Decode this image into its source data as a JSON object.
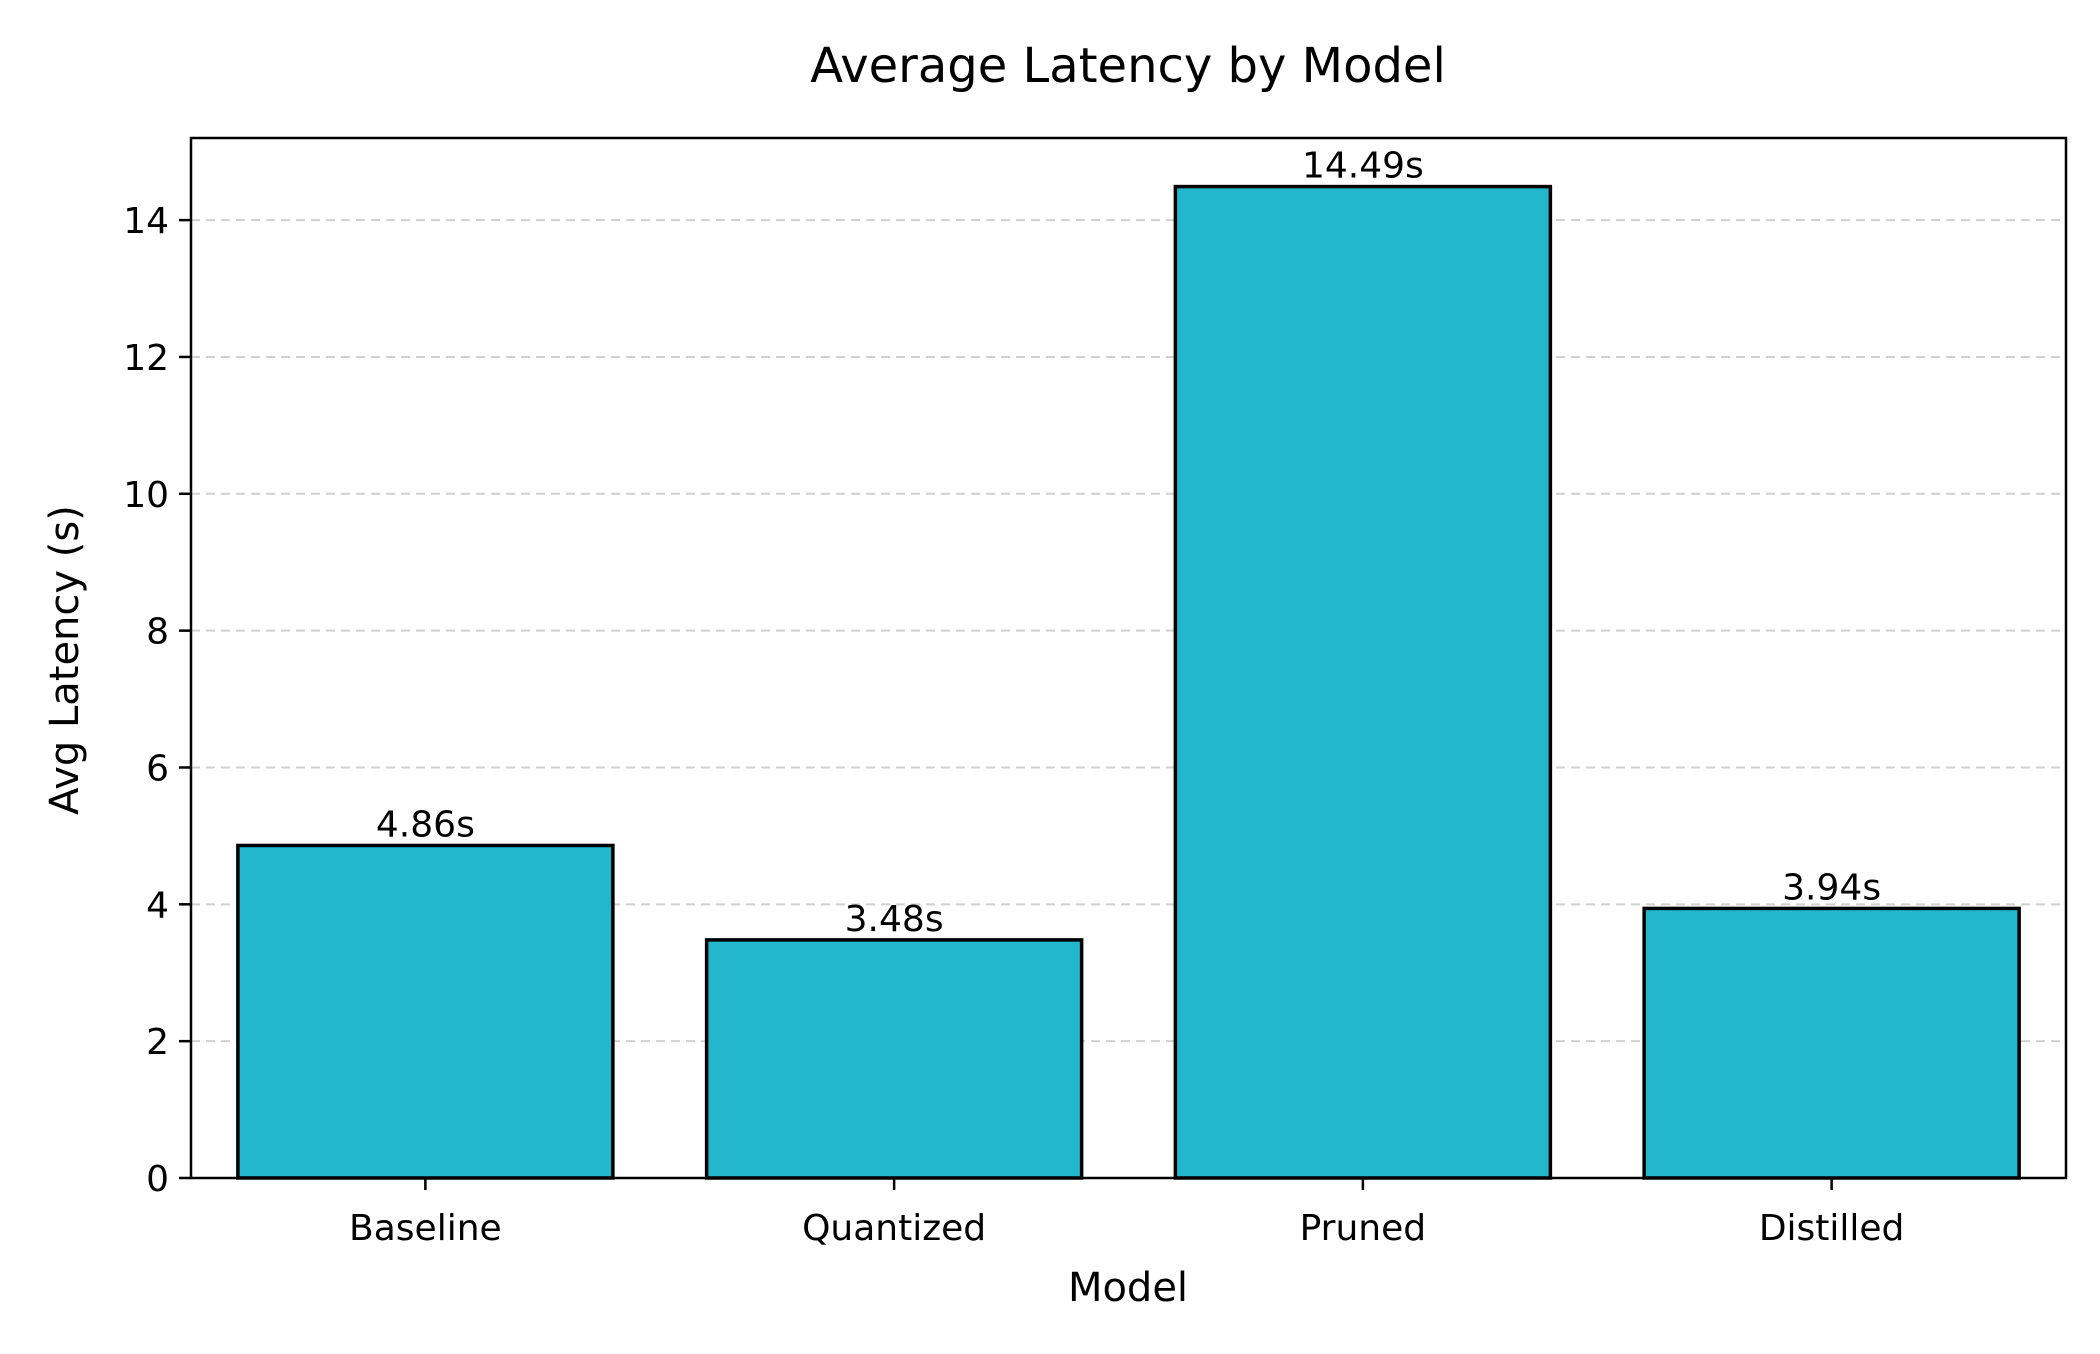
{
  "chart_data": {
    "type": "bar",
    "title": "Average Latency by Model",
    "xlabel": "Model",
    "ylabel": "Avg Latency (s)",
    "categories": [
      "Baseline",
      "Quantized",
      "Pruned",
      "Distilled"
    ],
    "values": [
      4.86,
      3.48,
      14.49,
      3.94
    ],
    "data_labels": [
      "4.86s",
      "3.48s",
      "14.49s",
      "3.94s"
    ],
    "ylim": [
      0,
      15.2
    ],
    "yticks": [
      0,
      2,
      4,
      6,
      8,
      10,
      12,
      14
    ],
    "grid": "y-dashed",
    "legend": "none",
    "colors": {
      "bar_fill": "#22b7cd",
      "bar_edge": "#000000",
      "grid": "#d0d0d0",
      "axis": "#000000"
    }
  }
}
